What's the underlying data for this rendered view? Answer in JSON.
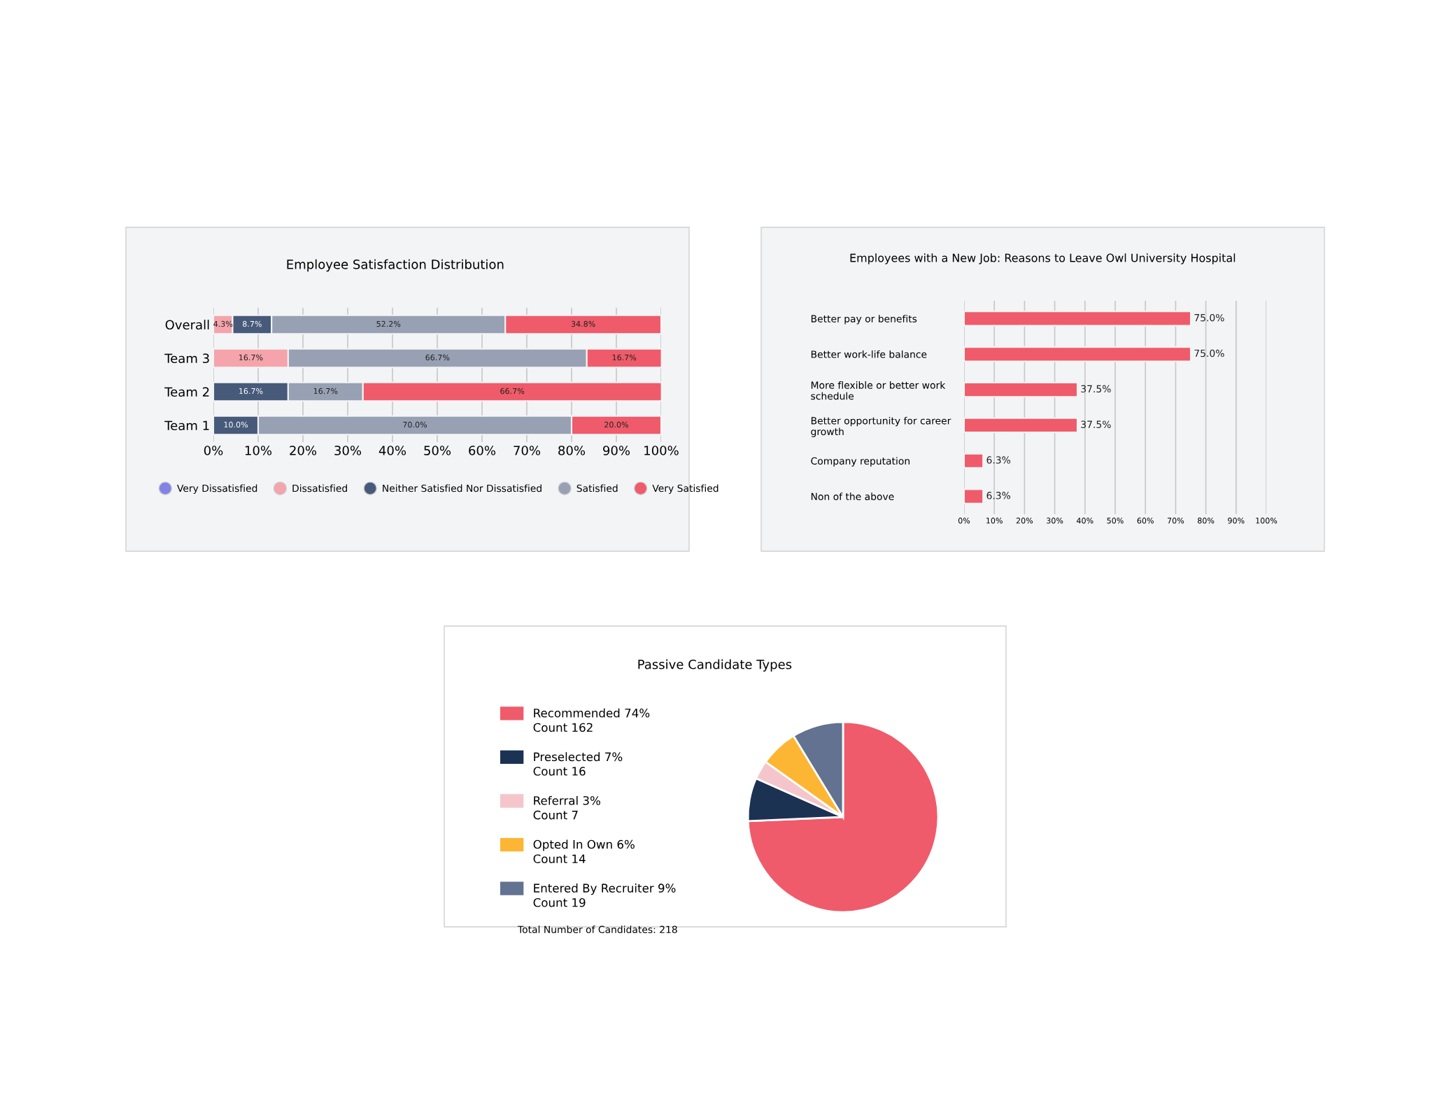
{
  "chart_data": [
    {
      "type": "bar",
      "orientation": "horizontal",
      "stacked": true,
      "title": "Employee Satisfaction Distribution",
      "categories": [
        "Overall",
        "Team 3",
        "Team 2",
        "Team 1"
      ],
      "series": [
        {
          "name": "Very Dissatisfied",
          "color": "#8383e6",
          "values": [
            null,
            null,
            null,
            null
          ],
          "value_labels": [
            null,
            null,
            null,
            null
          ]
        },
        {
          "name": "Dissatisfied",
          "color": "#f4a4aa",
          "values": [
            4.3,
            16.7,
            null,
            null
          ],
          "value_labels": [
            "4.3%",
            "16.7%",
            null,
            null
          ]
        },
        {
          "name": "Neither Satisfied Nor Dissatisfied",
          "color": "#475a7a",
          "values": [
            8.7,
            null,
            16.7,
            10.0
          ],
          "value_labels": [
            "8.7%",
            null,
            "16.7%",
            "10.0%"
          ]
        },
        {
          "name": "Satisfied",
          "color": "#98a1b3",
          "values": [
            52.2,
            66.7,
            16.7,
            70.0
          ],
          "value_labels": [
            "52.2%",
            "66.7%",
            "16.7%",
            "70.0%"
          ]
        },
        {
          "name": "Very Satisfied",
          "color": "#ef5b6a",
          "values": [
            34.8,
            16.7,
            66.7,
            20.0
          ],
          "value_labels": [
            "34.8%",
            "16.7%",
            "66.7%",
            "20.0%"
          ]
        }
      ],
      "xlim": [
        0,
        100
      ],
      "xticks": [
        {
          "value": 0,
          "label": "0%"
        },
        {
          "value": 10,
          "label": "10%"
        },
        {
          "value": 20,
          "label": "20%"
        },
        {
          "value": 30,
          "label": "30%"
        },
        {
          "value": 40,
          "label": "40%"
        },
        {
          "value": 50,
          "label": "50%"
        },
        {
          "value": 60,
          "label": "60%"
        },
        {
          "value": 70,
          "label": "70%"
        },
        {
          "value": 80,
          "label": "80%"
        },
        {
          "value": 90,
          "label": "90%"
        },
        {
          "value": 100,
          "label": "100%"
        }
      ],
      "grid": "x",
      "legend": "bottom"
    },
    {
      "type": "bar",
      "orientation": "horizontal",
      "title": "Employees with a New Job: Reasons to Leave Owl University Hospital",
      "categories": [
        "Better pay or benefits",
        "Better work-life balance",
        "More flexible or better work\nschedule",
        "Better opportunity for career\ngrowth",
        "Company reputation",
        "Non of the above"
      ],
      "values": [
        75.0,
        75.0,
        37.5,
        37.5,
        6.3,
        6.3
      ],
      "color": "#ef5b6a",
      "value_labels": [
        "75.0%",
        "75.0%",
        "37.5%",
        "37.5%",
        "6.3%",
        "6.3%"
      ],
      "xlim": [
        0,
        100
      ],
      "xticks": [
        {
          "value": 0,
          "label": "0%"
        },
        {
          "value": 10,
          "label": "10%"
        },
        {
          "value": 20,
          "label": "20%"
        },
        {
          "value": 30,
          "label": "30%"
        },
        {
          "value": 40,
          "label": "40%"
        },
        {
          "value": 50,
          "label": "50%"
        },
        {
          "value": 60,
          "label": "60%"
        },
        {
          "value": 70,
          "label": "70%"
        },
        {
          "value": 80,
          "label": "80%"
        },
        {
          "value": 90,
          "label": "90%"
        },
        {
          "value": 100,
          "label": "100%"
        }
      ],
      "grid": "x"
    },
    {
      "type": "pie",
      "title": "Passive Candidate Types",
      "categories": [
        "Recommended 74%",
        "Preselected 7%",
        "Referral 3%",
        "Opted In Own 6%",
        "Entered By Recruiter 9%"
      ],
      "values": [
        162,
        16,
        7,
        14,
        19
      ],
      "value_labels": [
        "Count 162",
        "Count 16",
        "Count 7",
        "Count 14",
        "Count 19"
      ],
      "colors": [
        "#ef5b6a",
        "#1c3253",
        "#f4c6cc",
        "#fdb634",
        "#627290"
      ],
      "legend": "left",
      "annotations": [
        "Total Number of Candidates: 218"
      ]
    }
  ]
}
